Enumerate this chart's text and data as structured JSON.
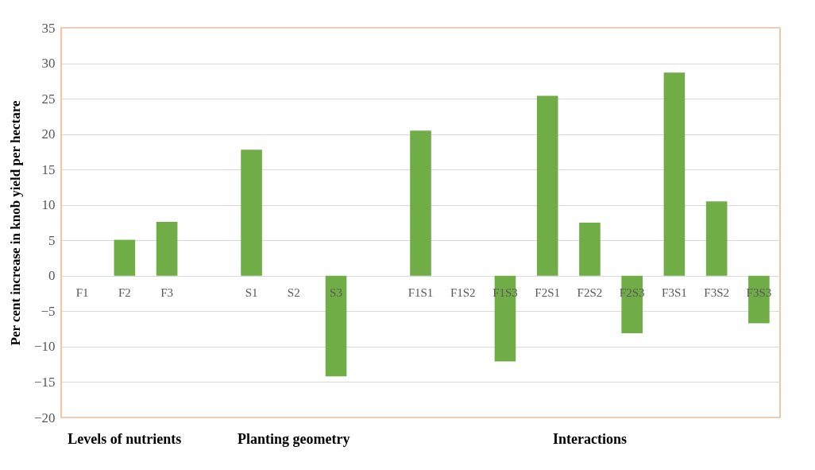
{
  "chart_data": {
    "type": "bar",
    "ylabel": "Per cent increase in knob yield per hectare",
    "categories": [
      "F1",
      "F2",
      "F3",
      null,
      "S1",
      "S2",
      "S3",
      null,
      "F1S1",
      "F1S2",
      "F1S3",
      "F2S1",
      "F2S2",
      "F2S3",
      "F3S1",
      "F3S2",
      "F3S3"
    ],
    "values": [
      0,
      5.1,
      7.6,
      null,
      17.8,
      0,
      -14.2,
      null,
      20.5,
      0,
      -12.1,
      25.4,
      7.5,
      -8.1,
      28.7,
      10.5,
      -6.7
    ],
    "color": "#70ad47",
    "ylim": [
      -20,
      35
    ],
    "yticks": [
      -20,
      -15,
      -10,
      -5,
      0,
      5,
      10,
      15,
      20,
      25,
      30,
      35
    ],
    "grid": "y",
    "annotations": [
      "Levels of nutrients",
      "Planting geometry",
      "Interactions"
    ]
  }
}
